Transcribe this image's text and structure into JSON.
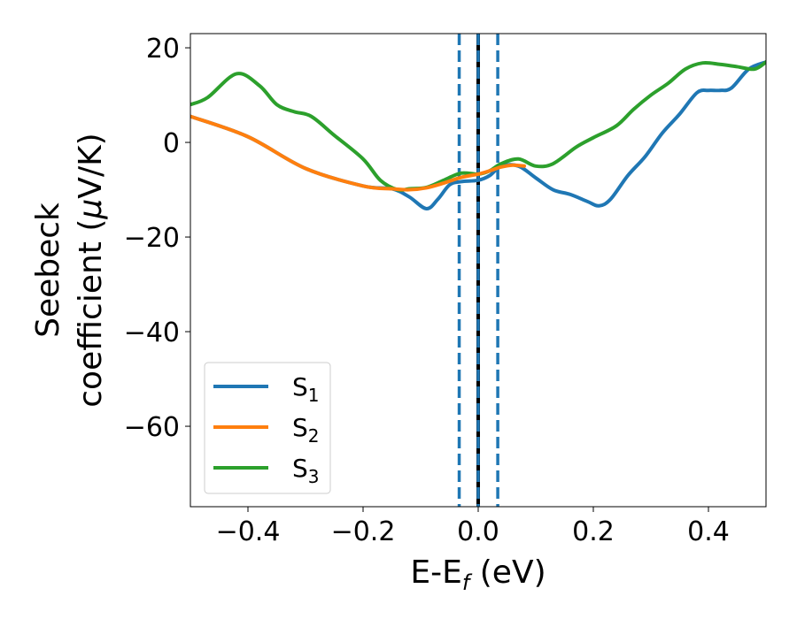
{
  "chart_data": {
    "type": "line",
    "xlabel": "E-E",
    "xlabel_sub": "f",
    "xlabel_unit": " (eV)",
    "ylabel_line1": "Seebeck",
    "ylabel_line2_prefix": "coefficient  (",
    "ylabel_mu": "μ",
    "ylabel_line2_suffix": "V/K)",
    "xlim": [
      -0.5,
      0.5
    ],
    "ylim": [
      -77,
      23
    ],
    "xticks": [
      -0.4,
      -0.2,
      0.0,
      0.2,
      0.4
    ],
    "xtick_labels": [
      "−0.4",
      "−0.2",
      "0.0",
      "0.2",
      "0.4"
    ],
    "yticks": [
      20,
      0,
      -20,
      -40,
      -60
    ],
    "ytick_labels": [
      "20",
      "0",
      "−20",
      "−40",
      "−60"
    ],
    "legend_position": "lower-left",
    "vertical_lines": [
      {
        "x": -0.033,
        "style": "dashed",
        "color": "#1f77b4"
      },
      {
        "x": 0.0,
        "style": "solid",
        "color": "#000000"
      },
      {
        "x": 0.0,
        "style": "dashed",
        "color": "#1f77b4"
      },
      {
        "x": 0.034,
        "style": "dashed",
        "color": "#1f77b4"
      }
    ],
    "series": [
      {
        "name": "S",
        "sub": "1",
        "color": "#1f77b4",
        "x": [
          -0.5,
          -0.4,
          -0.3,
          -0.2,
          -0.15,
          -0.12,
          -0.09,
          -0.07,
          -0.05,
          -0.03,
          0.0,
          0.02,
          0.04,
          0.07,
          0.1,
          0.13,
          0.16,
          0.19,
          0.21,
          0.23,
          0.26,
          0.29,
          0.32,
          0.35,
          0.38,
          0.4,
          0.42,
          0.44,
          0.47,
          0.5
        ],
        "y": [
          5.5,
          1.2,
          -5.5,
          -9.2,
          -9.8,
          -11.5,
          -14.0,
          -12.0,
          -9.0,
          -8.3,
          -8.0,
          -7.0,
          -5.0,
          -5.0,
          -7.5,
          -10.0,
          -11.0,
          -12.5,
          -13.4,
          -12.0,
          -7.0,
          -3.0,
          2.0,
          6.0,
          10.5,
          11.0,
          11.0,
          11.5,
          15.5,
          17.0
        ]
      },
      {
        "name": "S",
        "sub": "2",
        "color": "#ff7f0e",
        "x": [
          -0.5,
          -0.4,
          -0.3,
          -0.2,
          -0.15,
          -0.12,
          -0.09,
          -0.06,
          -0.03,
          0.0,
          0.02,
          0.04,
          0.06,
          0.08
        ],
        "y": [
          5.5,
          1.2,
          -5.5,
          -9.2,
          -9.8,
          -10.0,
          -9.6,
          -8.6,
          -7.4,
          -6.7,
          -6.0,
          -5.2,
          -4.8,
          -5.0
        ]
      },
      {
        "name": "S",
        "sub": "3",
        "color": "#2ca02c",
        "x": [
          -0.5,
          -0.47,
          -0.42,
          -0.38,
          -0.35,
          -0.32,
          -0.29,
          -0.25,
          -0.2,
          -0.17,
          -0.14,
          -0.12,
          -0.09,
          -0.06,
          -0.03,
          0.0,
          0.02,
          0.04,
          0.07,
          0.1,
          0.13,
          0.17,
          0.2,
          0.24,
          0.27,
          0.3,
          0.33,
          0.36,
          0.39,
          0.42,
          0.45,
          0.48,
          0.5
        ],
        "y": [
          8.0,
          9.5,
          14.5,
          12.0,
          8.0,
          6.5,
          5.5,
          1.5,
          -3.5,
          -8.0,
          -10.0,
          -9.8,
          -9.5,
          -8.0,
          -6.5,
          -6.7,
          -6.0,
          -4.5,
          -3.5,
          -5.0,
          -4.5,
          -1.0,
          1.0,
          3.5,
          7.0,
          10.0,
          12.5,
          15.5,
          16.8,
          16.5,
          16.0,
          15.5,
          17.0
        ]
      }
    ]
  }
}
